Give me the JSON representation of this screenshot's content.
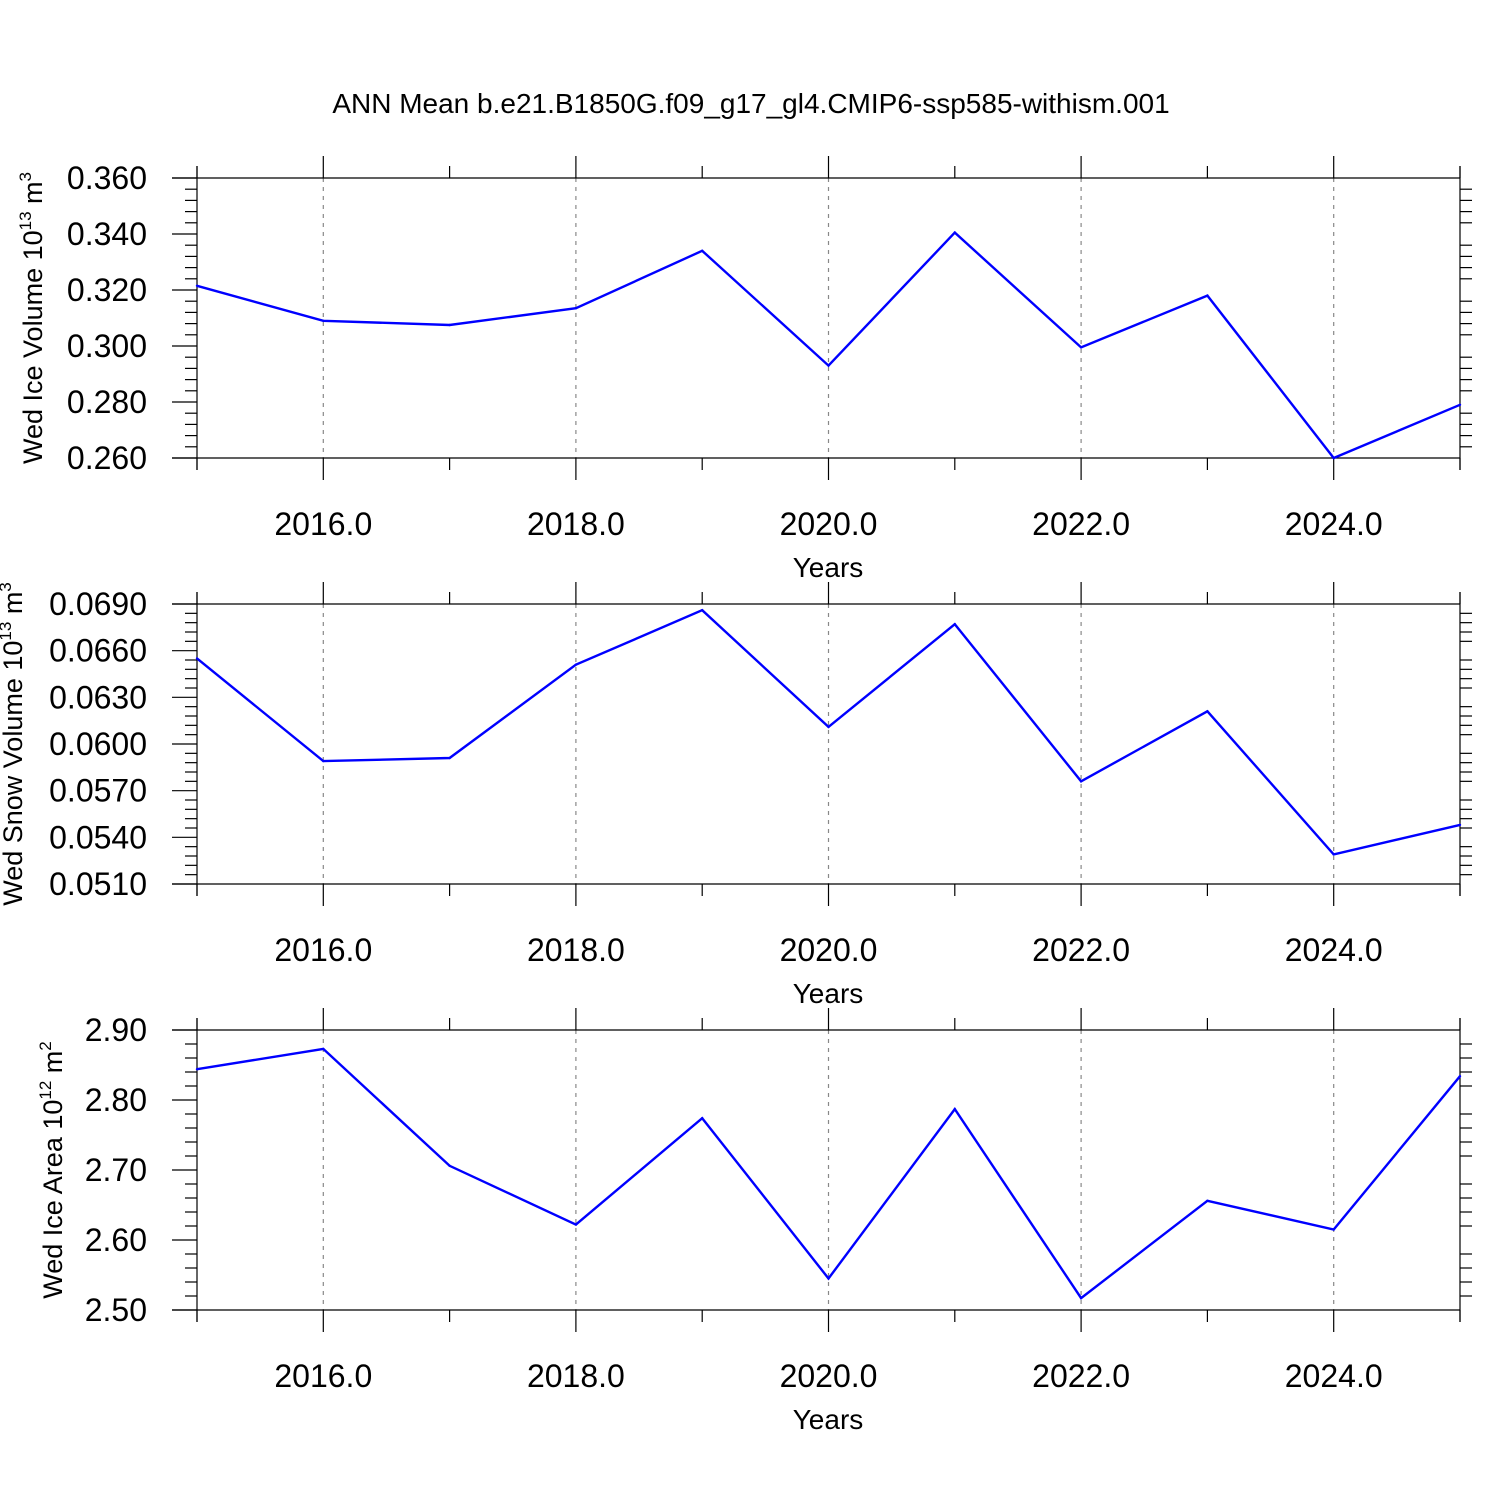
{
  "figure": {
    "title": "ANN Mean b.e21.B1850G.f09_g17_gl4.CMIP6-ssp585-withism.001"
  },
  "chart_data": [
    {
      "type": "line",
      "ylabel": "Wed Ice Volume 10",
      "ylabel_exp": "13",
      "ylabel_unit": "m",
      "ylabel_unit_exp": "3",
      "xlabel": "Years",
      "xlim": [
        2015,
        2025
      ],
      "ylim": [
        0.26,
        0.36
      ],
      "x_ticks": [
        2016,
        2018,
        2020,
        2022,
        2024
      ],
      "x_tick_labels": [
        "2016.0",
        "2018.0",
        "2020.0",
        "2022.0",
        "2024.0"
      ],
      "y_ticks": [
        0.26,
        0.28,
        0.3,
        0.32,
        0.34,
        0.36
      ],
      "y_tick_labels": [
        "0.260",
        "0.280",
        "0.300",
        "0.320",
        "0.340",
        "0.360"
      ],
      "grid": "vertical dashed at major x ticks",
      "color": "#0000ff",
      "x": [
        2015,
        2016,
        2017,
        2018,
        2019,
        2020,
        2021,
        2022,
        2023,
        2024,
        2025
      ],
      "values": [
        0.3215,
        0.309,
        0.3075,
        0.3135,
        0.334,
        0.293,
        0.3405,
        0.2995,
        0.318,
        0.26,
        0.279
      ]
    },
    {
      "type": "line",
      "ylabel": "Wed Snow Volume 10",
      "ylabel_exp": "13",
      "ylabel_unit": "m",
      "ylabel_unit_exp": "3",
      "xlabel": "Years",
      "xlim": [
        2015,
        2025
      ],
      "ylim": [
        0.051,
        0.069
      ],
      "x_ticks": [
        2016,
        2018,
        2020,
        2022,
        2024
      ],
      "x_tick_labels": [
        "2016.0",
        "2018.0",
        "2020.0",
        "2022.0",
        "2024.0"
      ],
      "y_ticks": [
        0.051,
        0.054,
        0.057,
        0.06,
        0.063,
        0.066,
        0.069
      ],
      "y_tick_labels": [
        "0.0510",
        "0.0540",
        "0.0570",
        "0.0600",
        "0.0630",
        "0.0660",
        "0.0690"
      ],
      "grid": "vertical dashed at major x ticks",
      "color": "#0000ff",
      "x": [
        2015,
        2016,
        2017,
        2018,
        2019,
        2020,
        2021,
        2022,
        2023,
        2024,
        2025
      ],
      "values": [
        0.0655,
        0.0589,
        0.0591,
        0.0651,
        0.0686,
        0.0611,
        0.0677,
        0.0576,
        0.0621,
        0.0529,
        0.0548
      ]
    },
    {
      "type": "line",
      "ylabel": "Wed Ice Area 10",
      "ylabel_exp": "12",
      "ylabel_unit": "m",
      "ylabel_unit_exp": "2",
      "xlabel": "Years",
      "xlim": [
        2015,
        2025
      ],
      "ylim": [
        2.5,
        2.9
      ],
      "x_ticks": [
        2016,
        2018,
        2020,
        2022,
        2024
      ],
      "x_tick_labels": [
        "2016.0",
        "2018.0",
        "2020.0",
        "2022.0",
        "2024.0"
      ],
      "y_ticks": [
        2.5,
        2.6,
        2.7,
        2.8,
        2.9
      ],
      "y_tick_labels": [
        "2.50",
        "2.60",
        "2.70",
        "2.80",
        "2.90"
      ],
      "grid": "vertical dashed at major x ticks",
      "color": "#0000ff",
      "x": [
        2015,
        2016,
        2017,
        2018,
        2019,
        2020,
        2021,
        2022,
        2023,
        2024,
        2025
      ],
      "values": [
        2.844,
        2.873,
        2.706,
        2.622,
        2.774,
        2.545,
        2.787,
        2.517,
        2.656,
        2.615,
        2.834
      ]
    }
  ]
}
